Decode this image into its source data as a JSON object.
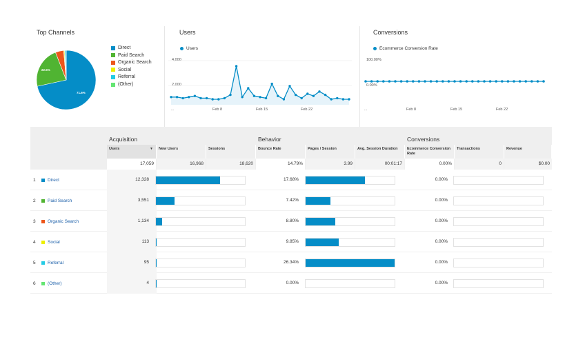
{
  "top_channels": {
    "title": "Top Channels",
    "pie_labels": [
      "22.5%",
      "71.6%"
    ],
    "legend": [
      {
        "label": "Direct",
        "color": "#058dc7"
      },
      {
        "label": "Paid Search",
        "color": "#50b432"
      },
      {
        "label": "Organic Search",
        "color": "#ed561b"
      },
      {
        "label": "Social",
        "color": "#edef00"
      },
      {
        "label": "Referral",
        "color": "#24cbe5"
      },
      {
        "label": "(Other)",
        "color": "#64e572"
      }
    ],
    "slices": [
      71.6,
      22.5,
      4.5,
      0.5,
      0.7,
      0.2
    ]
  },
  "users_chart": {
    "title": "Users",
    "legend": "Users",
    "y_ticks": [
      "4,000",
      "2,000"
    ],
    "x_ticks": [
      "...",
      "Feb 8",
      "Feb 15",
      "Feb 22"
    ],
    "values": [
      700,
      700,
      600,
      700,
      800,
      600,
      600,
      500,
      500,
      600,
      900,
      3500,
      700,
      1500,
      800,
      700,
      600,
      1900,
      800,
      500,
      1700,
      900,
      600,
      1000,
      800,
      1200,
      900,
      500,
      600,
      500,
      500
    ]
  },
  "conversions_chart": {
    "title": "Conversions",
    "legend": "Ecommerce Conversion Rate",
    "y_ticks": [
      "100.00%",
      "0.00%"
    ],
    "x_ticks": [
      "...",
      "Feb 8",
      "Feb 15",
      "Feb 22"
    ]
  },
  "table": {
    "groups": {
      "acquisition": "Acquisition",
      "behavior": "Behavior",
      "conversions": "Conversions"
    },
    "headers": {
      "users": "Users",
      "new_users": "New Users",
      "sessions": "Sessions",
      "bounce_rate": "Bounce Rate",
      "pages_session": "Pages / Session",
      "avg_session": "Avg. Session Duration",
      "ecom_rate": "Ecommerce Conversion Rate",
      "transactions": "Transactions",
      "revenue": "Revenue"
    },
    "totals": {
      "users": "17,059",
      "new_users": "16,968",
      "sessions": "18,620",
      "bounce_rate": "14.79%",
      "pages_session": "3.99",
      "avg_session": "00:01:17",
      "ecom_rate": "0.00%",
      "transactions": "0",
      "revenue": "$0.00"
    },
    "rows": [
      {
        "idx": "1",
        "channel": "Direct",
        "color": "#058dc7",
        "users": "12,328",
        "users_frac": 0.72,
        "bounce": "17.68%",
        "bounce_frac": 0.67,
        "conv": "0.00%"
      },
      {
        "idx": "2",
        "channel": "Paid Search",
        "color": "#50b432",
        "users": "3,551",
        "users_frac": 0.208,
        "bounce": "7.42%",
        "bounce_frac": 0.28,
        "conv": "0.00%"
      },
      {
        "idx": "3",
        "channel": "Organic Search",
        "color": "#ed561b",
        "users": "1,134",
        "users_frac": 0.066,
        "bounce": "8.80%",
        "bounce_frac": 0.33,
        "conv": "0.00%"
      },
      {
        "idx": "4",
        "channel": "Social",
        "color": "#edef00",
        "users": "113",
        "users_frac": 0.007,
        "bounce": "9.85%",
        "bounce_frac": 0.37,
        "conv": "0.00%"
      },
      {
        "idx": "5",
        "channel": "Referral",
        "color": "#24cbe5",
        "users": "95",
        "users_frac": 0.006,
        "bounce": "26.34%",
        "bounce_frac": 1.0,
        "conv": "0.00%"
      },
      {
        "idx": "6",
        "channel": "(Other)",
        "color": "#64e572",
        "users": "4",
        "users_frac": 0.0003,
        "bounce": "0.00%",
        "bounce_frac": 0.0,
        "conv": "0.00%"
      }
    ]
  }
}
